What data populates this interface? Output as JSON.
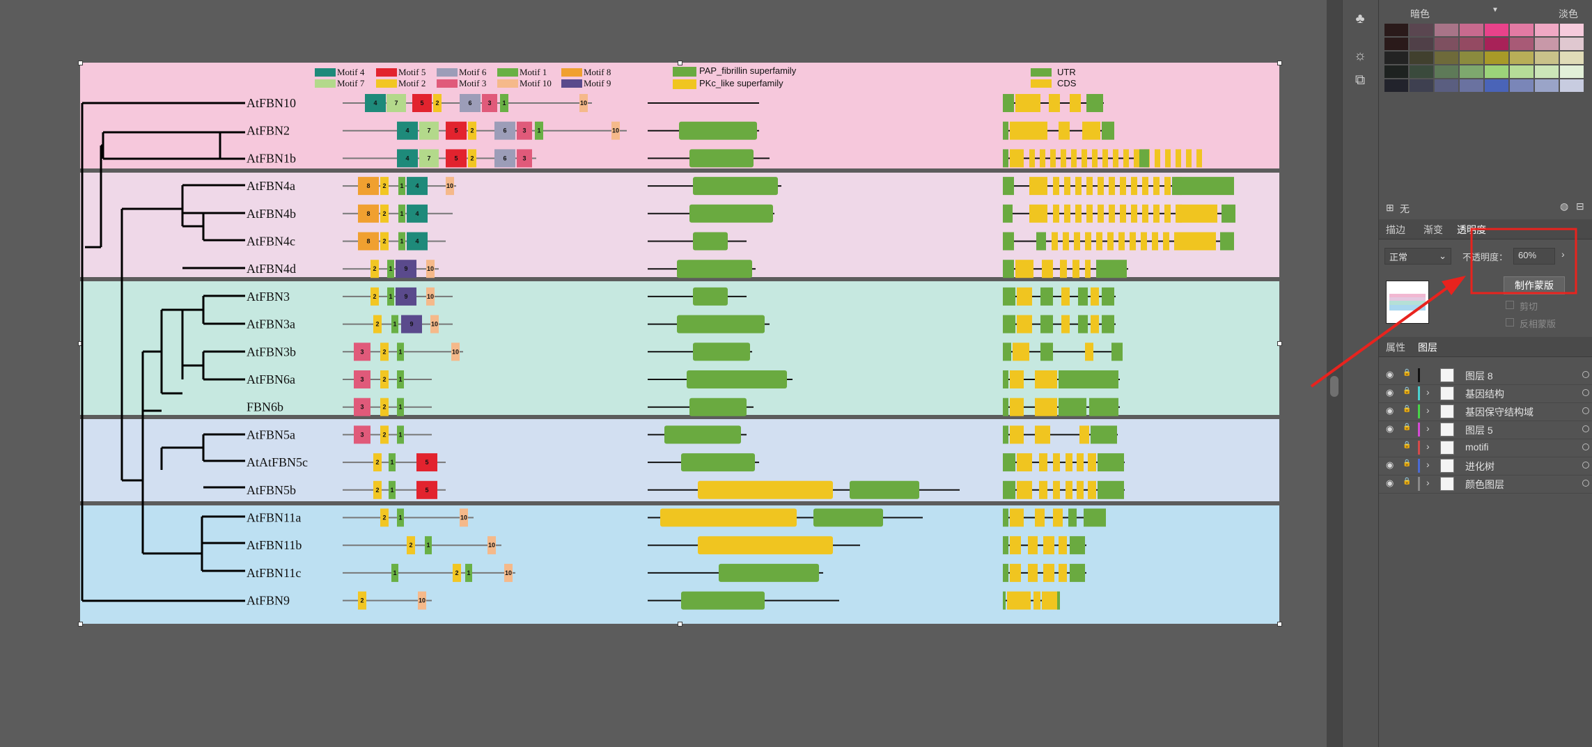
{
  "figure": {
    "gene_names": [
      "AtFBN10",
      "AtFBN2",
      "AtFBN1b",
      "AtFBN4a",
      "AtFBN4b",
      "AtFBN4c",
      "AtFBN4d",
      "AtFBN3",
      "AtFBN3a",
      "AtFBN3b",
      "AtFBN6a",
      "FBN6b",
      "AtFBN5a",
      "AtAtFBN5c",
      "AtFBN5b",
      "AtFBN11a",
      "AtFBN11b",
      "AtFBN11c",
      "AtFBN9"
    ],
    "motif_legend": [
      {
        "label": "Motif 4",
        "color": "#1e8a7a"
      },
      {
        "label": "Motif 5",
        "color": "#e2232e"
      },
      {
        "label": "Motif 6",
        "color": "#9c9db8"
      },
      {
        "label": "Motif 1",
        "color": "#69b045"
      },
      {
        "label": "Motif 8",
        "color": "#f0a030"
      },
      {
        "label": "Motif 7",
        "color": "#b3d98b"
      },
      {
        "label": "Motif 2",
        "color": "#f2c623"
      },
      {
        "label": "Motif 3",
        "color": "#e05a7a"
      },
      {
        "label": "Motif 10",
        "color": "#f5b98a"
      },
      {
        "label": "Motif 9",
        "color": "#5a4a8c"
      }
    ],
    "domain_legend": [
      {
        "label": "PAP_fibrillin superfamily",
        "color": "#6aaa40"
      },
      {
        "label": "PKc_like superfamily",
        "color": "#f0c520"
      }
    ],
    "gene_legend": [
      {
        "label": "UTR",
        "color": "#6aaa40"
      },
      {
        "label": "CDS",
        "color": "#f0c520"
      }
    ],
    "band_colors": [
      "#f6c8dc",
      "#efd8e8",
      "#c6e8e0",
      "#d2dff1",
      "#bde0f2"
    ]
  },
  "panel": {
    "swatch_header_left": "暗色",
    "swatch_header_right": "淡色",
    "swatch_footer": "无",
    "tabs": [
      "描边",
      "渐变",
      "透明度"
    ],
    "blend_mode": "正常",
    "opacity_label": "不透明度：",
    "opacity_value": "60%",
    "make_mask_button": "制作蒙版",
    "clip_label": "剪切",
    "invert_mask_label": "反相蒙版",
    "lower_tabs": [
      "属性",
      "图层"
    ],
    "layers": [
      {
        "name": "图层 8",
        "visible": true,
        "expandable": false,
        "color": "#111111"
      },
      {
        "name": "基因结构",
        "visible": true,
        "expandable": true,
        "color": "#4ad0d0"
      },
      {
        "name": "基因保守结构域",
        "visible": true,
        "expandable": true,
        "color": "#47d447"
      },
      {
        "name": "图层 5",
        "visible": true,
        "expandable": true,
        "color": "#d44ad4"
      },
      {
        "name": "motifi",
        "visible": false,
        "expandable": true,
        "color": "#d44a4a"
      },
      {
        "name": "进化树",
        "visible": true,
        "expandable": true,
        "color": "#4a6ad4"
      },
      {
        "name": "颜色图层",
        "visible": true,
        "expandable": true,
        "color": "#8a8a8a"
      }
    ]
  }
}
